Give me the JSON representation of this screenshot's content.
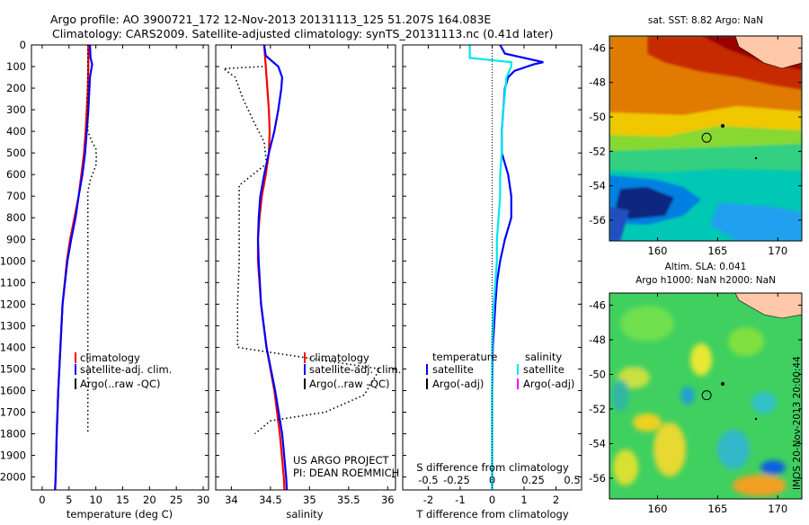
{
  "header": {
    "line1": "Argo profile: AO 3900721_172 12-Nov-2013 20131113_125 51.207S 164.083E",
    "line2": "Climatology: CARS2009. Satellite-adjusted climatology: synTS_20131113.nc (0.41d later)"
  },
  "colors": {
    "climatology": "#ff0000",
    "satellite": "#0000ff",
    "argo": "#000000",
    "salinity_satellite": "#00e5ee",
    "argo_salinity_adj": "#ff00ff"
  },
  "credit": {
    "line1": "US ARGO PROJECT",
    "line2": "PI: DEAN ROEMMICH"
  },
  "timestamp": "IMOS 20-Nov-2013 20:00:44",
  "chart_data": [
    {
      "type": "line",
      "name": "temperature-profile",
      "xlabel": "temperature (deg C)",
      "xlim": [
        -2,
        31
      ],
      "xticks": [
        0,
        5,
        10,
        15,
        20,
        25,
        30
      ],
      "ylim": [
        2060,
        0
      ],
      "yticks": [
        0,
        100,
        200,
        300,
        400,
        500,
        600,
        700,
        800,
        900,
        1000,
        1100,
        1200,
        1300,
        1400,
        1500,
        1600,
        1700,
        1800,
        1900,
        2000
      ],
      "legend": {
        "placement": "bottom-left",
        "entries": [
          "climatology",
          "satellite-adj. clim.",
          "Argo(..raw -QC)"
        ]
      },
      "series": [
        {
          "name": "climatology",
          "style": "solid",
          "color": "#ff0000",
          "depth": [
            0,
            100,
            200,
            300,
            400,
            500,
            600,
            700,
            800,
            900,
            1000,
            1200,
            1400,
            1600,
            1800,
            2000,
            2060
          ],
          "values": [
            8.6,
            8.6,
            8.5,
            8.3,
            8.1,
            7.8,
            7.3,
            6.8,
            6.0,
            5.2,
            4.6,
            3.8,
            3.4,
            3.0,
            2.7,
            2.5,
            2.4
          ]
        },
        {
          "name": "satellite-adj. clim.",
          "style": "solid",
          "color": "#0000ff",
          "depth": [
            0,
            60,
            90,
            150,
            300,
            400,
            500,
            600,
            700,
            800,
            900,
            1000,
            1200,
            1400,
            1600,
            1800,
            2000,
            2060
          ],
          "values": [
            8.9,
            9.0,
            9.3,
            8.9,
            8.6,
            8.3,
            8.0,
            7.5,
            6.8,
            6.2,
            5.4,
            4.7,
            3.8,
            3.4,
            3.0,
            2.7,
            2.5,
            2.4
          ]
        },
        {
          "name": "Argo(..raw -QC)",
          "style": "dotted",
          "color": "#000000",
          "depth": [
            0,
            400,
            450,
            480,
            520,
            560,
            620,
            680,
            1800
          ],
          "values": [
            8.5,
            8.5,
            9.3,
            10.0,
            10.1,
            10.0,
            9.0,
            8.5,
            8.5
          ]
        }
      ]
    },
    {
      "type": "line",
      "name": "salinity-profile",
      "xlabel": "salinity",
      "xlim": [
        33.8,
        36.1
      ],
      "xticks": [
        34,
        34.5,
        35,
        35.5,
        36
      ],
      "ylim": [
        2060,
        0
      ],
      "legend": {
        "placement": "bottom-right",
        "entries": [
          "climatology",
          "satellite-adj. clim.",
          "Argo(..raw -QC)"
        ]
      },
      "series": [
        {
          "name": "climatology",
          "style": "solid",
          "color": "#ff0000",
          "depth": [
            0,
            100,
            200,
            300,
            400,
            500,
            600,
            700,
            800,
            900,
            1000,
            1200,
            1400,
            1600,
            1800,
            2000,
            2060
          ],
          "values": [
            34.42,
            34.44,
            34.46,
            34.48,
            34.49,
            34.48,
            34.44,
            34.39,
            34.36,
            34.34,
            34.34,
            34.38,
            34.45,
            34.55,
            34.62,
            34.67,
            34.68
          ]
        },
        {
          "name": "satellite-adj. clim.",
          "style": "solid",
          "color": "#0000ff",
          "depth": [
            0,
            50,
            100,
            150,
            200,
            300,
            400,
            500,
            600,
            700,
            800,
            900,
            1000,
            1200,
            1400,
            1600,
            1800,
            2000,
            2060
          ],
          "values": [
            34.42,
            34.44,
            34.6,
            34.65,
            34.64,
            34.6,
            34.55,
            34.48,
            34.42,
            34.37,
            34.35,
            34.34,
            34.35,
            34.38,
            34.45,
            34.56,
            34.65,
            34.7,
            34.71
          ]
        },
        {
          "name": "Argo(..raw -QC)",
          "style": "dotted",
          "color": "#000000",
          "depth": [
            100,
            110,
            150,
            250,
            350,
            450,
            550,
            650,
            700,
            1000,
            1200,
            1400,
            1500,
            1620,
            1700,
            1740,
            1800
          ],
          "values": [
            34.4,
            33.9,
            34.05,
            34.15,
            34.28,
            34.42,
            34.45,
            34.1,
            34.1,
            34.1,
            34.08,
            34.08,
            35.9,
            35.7,
            35.2,
            34.5,
            34.3
          ]
        }
      ]
    },
    {
      "type": "line",
      "name": "difference-profile",
      "xlabel": "T difference from climatology",
      "xlabel_top": "S difference from climatology",
      "xlim": [
        -2.8,
        2.8
      ],
      "xticks": [
        -2,
        -1,
        0,
        1,
        2
      ],
      "xticks_top": [
        "-0.5",
        "-0.25",
        "0",
        "0.25",
        "0.5"
      ],
      "ylim": [
        2060,
        0
      ],
      "legend": {
        "placement": "bottom",
        "temperature_title": "temperature",
        "salinity_title": "salinity",
        "temperature_entries": [
          "satellite",
          "Argo(-adj)"
        ],
        "salinity_entries": [
          "satellite",
          "Argo(-adj)"
        ]
      },
      "zero_line": "dotted",
      "series": [
        {
          "name": "temperature satellite",
          "style": "solid",
          "color": "#0000ff",
          "depth": [
            0,
            40,
            80,
            90,
            120,
            150,
            200,
            300,
            400,
            500,
            600,
            700,
            800,
            900,
            1000,
            1100,
            1200,
            1400,
            1600,
            1800,
            2000,
            2060
          ],
          "values": [
            0.25,
            0.4,
            1.6,
            1.3,
            0.7,
            0.5,
            0.4,
            0.35,
            0.3,
            0.3,
            0.5,
            0.6,
            0.6,
            0.4,
            0.25,
            0.15,
            0.1,
            0.02,
            0,
            0,
            0,
            0
          ]
        },
        {
          "name": "salinity satellite",
          "style": "solid",
          "color": "#00e5ee",
          "depth": [
            0,
            60,
            80,
            100,
            150,
            300,
            400,
            500,
            600,
            700,
            800,
            900,
            1000,
            1100,
            1200,
            1300,
            1400,
            1600,
            1800,
            2000,
            2060
          ],
          "values": [
            -0.7,
            -0.7,
            0.6,
            0.6,
            0.45,
            0.35,
            0.3,
            0.3,
            0.25,
            0.25,
            0.2,
            0.15,
            0.15,
            0.1,
            0.05,
            0.02,
            0,
            0,
            0,
            0,
            0
          ]
        }
      ]
    },
    {
      "type": "heatmap",
      "name": "sst-map",
      "title": "sat. SST: 8.82 Argo: NaN",
      "xlim": [
        156,
        172
      ],
      "ylim": [
        -57.2,
        -45.3
      ],
      "xticks": [
        160,
        165,
        170
      ],
      "yticks": [
        -46,
        -48,
        -50,
        -52,
        -54,
        -56
      ],
      "argo_position": [
        164.083,
        -51.207
      ]
    },
    {
      "type": "heatmap",
      "name": "sla-map",
      "title": "Altim. SLA: 0.041",
      "subtitle": "Argo h1000: NaN h2000: NaN",
      "xlim": [
        156,
        172
      ],
      "ylim": [
        -57.2,
        -45.3
      ],
      "xticks": [
        160,
        165,
        170
      ],
      "yticks": [
        -46,
        -48,
        -50,
        -52,
        -54,
        -56
      ],
      "argo_position": [
        164.083,
        -51.207
      ]
    }
  ]
}
